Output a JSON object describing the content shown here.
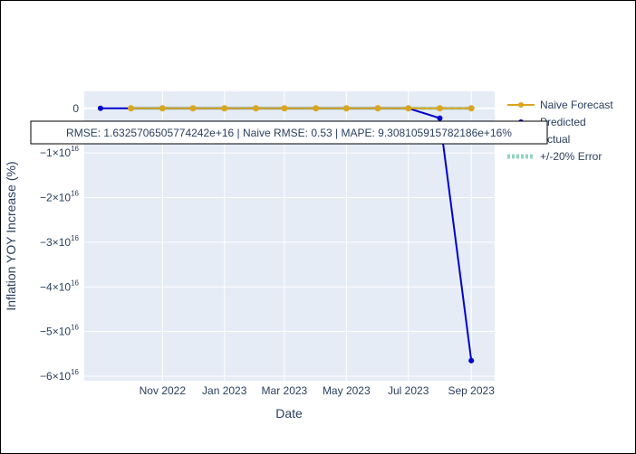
{
  "chart_data": {
    "type": "line",
    "title": "",
    "xlabel": "Date",
    "ylabel": "Inflation YOY Increase (%)",
    "x_range": [
      "2022-08-16",
      "2023-09-24"
    ],
    "ylim": [
      -6.1e+16,
      3800000000000000.0
    ],
    "x_tick_values": [
      "2022-11-01",
      "2023-01-01",
      "2023-03-01",
      "2023-05-01",
      "2023-07-01",
      "2023-09-01"
    ],
    "x_tick_labels": [
      "Nov 2022",
      "Jan 2023",
      "Mar 2023",
      "May 2023",
      "Jul 2023",
      "Sep 2023"
    ],
    "y_tick_values": [
      0,
      -1e+16,
      -2e+16,
      -3e+16,
      -4e+16,
      -5e+16,
      -6e+16
    ],
    "y_tick_labels": [
      {
        "base": "0",
        "exp": ""
      },
      {
        "base": "−1×10",
        "exp": "16"
      },
      {
        "base": "−2×10",
        "exp": "16"
      },
      {
        "base": "−3×10",
        "exp": "16"
      },
      {
        "base": "−4×10",
        "exp": "16"
      },
      {
        "base": "−5×10",
        "exp": "16"
      },
      {
        "base": "−6×10",
        "exp": "16"
      }
    ],
    "grid": true,
    "legend_position": "right",
    "series": [
      {
        "name": "Naive Forecast",
        "color": "#DAA520",
        "x": [
          "2022-10-01",
          "2022-11-01",
          "2022-12-01",
          "2023-01-01",
          "2023-02-01",
          "2023-03-01",
          "2023-04-01",
          "2023-05-01",
          "2023-06-01",
          "2023-07-01",
          "2023-08-01",
          "2023-09-01"
        ],
        "y": [
          0,
          0,
          0,
          0,
          0,
          0,
          0,
          0,
          0,
          0,
          0,
          0
        ]
      },
      {
        "name": "Predicted",
        "color": "#0000CD",
        "x": [
          "2022-09-01",
          "2022-10-01",
          "2022-11-01",
          "2022-12-01",
          "2023-01-01",
          "2023-02-01",
          "2023-03-01",
          "2023-04-01",
          "2023-05-01",
          "2023-06-01",
          "2023-07-01",
          "2023-08-01",
          "2023-09-01"
        ],
        "y": [
          0,
          0,
          0,
          0,
          0,
          0,
          0,
          0,
          0,
          0,
          0,
          -2200000000000000.0,
          -5.65e+16
        ]
      },
      {
        "name": "Actual",
        "color": "#6E8B9E",
        "x": [
          "2022-10-01",
          "2022-11-01",
          "2022-12-01",
          "2023-01-01",
          "2023-02-01",
          "2023-03-01",
          "2023-04-01",
          "2023-05-01",
          "2023-06-01",
          "2023-07-01",
          "2023-08-01",
          "2023-09-01"
        ],
        "y": [
          0,
          0,
          0,
          0,
          0,
          0,
          0,
          0,
          0,
          0,
          0,
          0
        ]
      },
      {
        "name": "+/-20% Error",
        "color": "#66C2A5"
      }
    ],
    "annotation": "RMSE: 1.6325706505774242e+16 | Naive RMSE: 0.53 | MAPE: 9.308105915782186e+16%"
  }
}
